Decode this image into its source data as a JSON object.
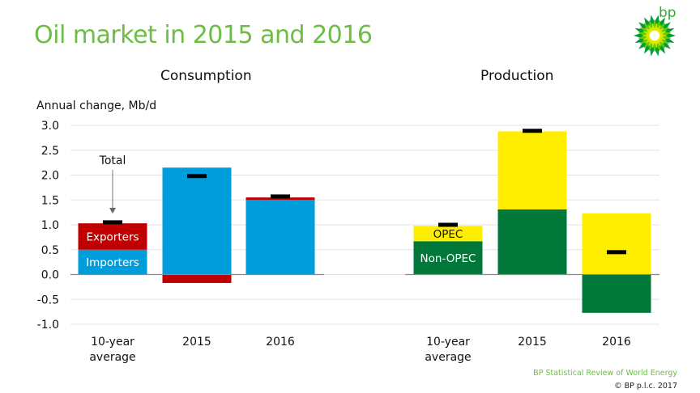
{
  "title": "Oil market in 2015 and 2016",
  "logo_text": "bp",
  "footer": {
    "source": "BP Statistical Review of World Energy",
    "copyright": "© BP p.l.c. 2017"
  },
  "colors": {
    "title": "#6cbd45",
    "importers": "#009ddc",
    "exporters": "#c00000",
    "opec": "#ffee00",
    "non_opec": "#00783a",
    "total_marker": "#000000"
  },
  "chart_data": [
    {
      "type": "bar",
      "stacked": true,
      "title": "Consumption",
      "ylabel": "Annual change, Mb/d",
      "xlabel": "",
      "categories": [
        "10-year average",
        "2015",
        "2016"
      ],
      "category_lines": [
        [
          "10-year",
          "average"
        ],
        [
          "2015"
        ],
        [
          "2016"
        ]
      ],
      "series": [
        {
          "name": "Importers",
          "color": "#009ddc",
          "values": [
            0.5,
            2.15,
            1.5
          ]
        },
        {
          "name": "Exporters",
          "color": "#c00000",
          "values": [
            0.53,
            -0.17,
            0.05
          ]
        }
      ],
      "totals": [
        1.05,
        1.98,
        1.57
      ],
      "annotations": [
        {
          "text": "Total",
          "category": "10-year average",
          "arrow": "down"
        },
        {
          "text": "Exporters",
          "category": "10-year average",
          "series": "Exporters"
        },
        {
          "text": "Importers",
          "category": "10-year average",
          "series": "Importers"
        }
      ],
      "ylim": [
        -1.0,
        3.0
      ],
      "yticks": [
        "3.0",
        "2.5",
        "2.0",
        "1.5",
        "1.0",
        "0.5",
        "0.0",
        "-0.5",
        "-1.0"
      ],
      "grid": true
    },
    {
      "type": "bar",
      "stacked": true,
      "title": "Production",
      "ylabel": "Annual change, Mb/d",
      "xlabel": "",
      "categories": [
        "10-year average",
        "2015",
        "2016"
      ],
      "category_lines": [
        [
          "10-year",
          "average"
        ],
        [
          "2015"
        ],
        [
          "2016"
        ]
      ],
      "series": [
        {
          "name": "Non-OPEC",
          "color": "#00783a",
          "values": [
            0.67,
            1.31,
            -0.77
          ]
        },
        {
          "name": "OPEC",
          "color": "#ffee00",
          "values": [
            0.31,
            1.57,
            1.23
          ]
        }
      ],
      "totals": [
        1.0,
        2.89,
        0.45
      ],
      "annotations": [
        {
          "text": "OPEC",
          "category": "10-year average",
          "series": "OPEC"
        },
        {
          "text": "Non-OPEC",
          "category": "10-year average",
          "series": "Non-OPEC"
        }
      ],
      "ylim": [
        -1.0,
        3.0
      ],
      "yticks": [
        "3.0",
        "2.5",
        "2.0",
        "1.5",
        "1.0",
        "0.5",
        "0.0",
        "-0.5",
        "-1.0"
      ],
      "grid": true
    }
  ]
}
